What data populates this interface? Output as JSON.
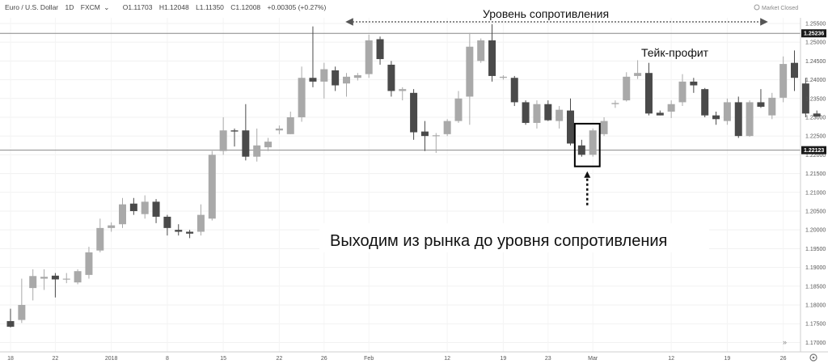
{
  "header": {
    "symbol": "Euro / U.S. Dollar",
    "timeframe": "1D",
    "source": "FXCM",
    "ohlc": {
      "open": "O1.11703",
      "high": "H1.12048",
      "low": "L1.11350",
      "close": "C1.12008"
    },
    "change": "+0.00305 (+0.27%)",
    "market_status": "Market Closed"
  },
  "chart_data": {
    "type": "candlestick",
    "y_axis": {
      "range": [
        1.1675,
        1.2565
      ],
      "ticks": [
        "1.25500",
        "1.25000",
        "1.24500",
        "1.24000",
        "1.23500",
        "1.23000",
        "1.22500",
        "1.22000",
        "1.21500",
        "1.21000",
        "1.20500",
        "1.20000",
        "1.19500",
        "1.19000",
        "1.18500",
        "1.18000",
        "1.17500",
        "1.17000"
      ]
    },
    "x_axis": {
      "ticks": [
        {
          "label": "18",
          "index": 0
        },
        {
          "label": "22",
          "index": 4
        },
        {
          "label": "2018",
          "index": 9
        },
        {
          "label": "8",
          "index": 14
        },
        {
          "label": "15",
          "index": 19
        },
        {
          "label": "22",
          "index": 24
        },
        {
          "label": "26",
          "index": 28
        },
        {
          "label": "Feb",
          "index": 32
        },
        {
          "label": "12",
          "index": 39
        },
        {
          "label": "19",
          "index": 44
        },
        {
          "label": "23",
          "index": 48
        },
        {
          "label": "Mar",
          "index": 52
        },
        {
          "label": "12",
          "index": 59
        },
        {
          "label": "19",
          "index": 64
        },
        {
          "label": "26",
          "index": 69
        }
      ]
    },
    "candles": [
      {
        "o": 1.1757,
        "h": 1.179,
        "l": 1.174,
        "c": 1.1742
      },
      {
        "o": 1.176,
        "h": 1.187,
        "l": 1.1752,
        "c": 1.18
      },
      {
        "o": 1.1845,
        "h": 1.1895,
        "l": 1.1812,
        "c": 1.1877
      },
      {
        "o": 1.187,
        "h": 1.1895,
        "l": 1.184,
        "c": 1.1875
      },
      {
        "o": 1.1878,
        "h": 1.1885,
        "l": 1.182,
        "c": 1.1868
      },
      {
        "o": 1.1868,
        "h": 1.1885,
        "l": 1.1858,
        "c": 1.187
      },
      {
        "o": 1.186,
        "h": 1.1895,
        "l": 1.1855,
        "c": 1.189
      },
      {
        "o": 1.188,
        "h": 1.1955,
        "l": 1.187,
        "c": 1.194
      },
      {
        "o": 1.1945,
        "h": 1.203,
        "l": 1.194,
        "c": 1.2005
      },
      {
        "o": 1.2005,
        "h": 1.202,
        "l": 1.1995,
        "c": 1.2012
      },
      {
        "o": 1.2015,
        "h": 1.2085,
        "l": 1.2005,
        "c": 1.2068
      },
      {
        "o": 1.207,
        "h": 1.2085,
        "l": 1.204,
        "c": 1.205
      },
      {
        "o": 1.2042,
        "h": 1.2092,
        "l": 1.203,
        "c": 1.2075
      },
      {
        "o": 1.2075,
        "h": 1.2082,
        "l": 1.2018,
        "c": 1.2035
      },
      {
        "o": 1.2035,
        "h": 1.204,
        "l": 1.1985,
        "c": 1.2005
      },
      {
        "o": 1.2,
        "h": 1.2015,
        "l": 1.1985,
        "c": 1.1995
      },
      {
        "o": 1.1995,
        "h": 1.2,
        "l": 1.1978,
        "c": 1.199
      },
      {
        "o": 1.1995,
        "h": 1.2068,
        "l": 1.1985,
        "c": 1.204
      },
      {
        "o": 1.203,
        "h": 1.221,
        "l": 1.2025,
        "c": 1.22
      },
      {
        "o": 1.221,
        "h": 1.23,
        "l": 1.22,
        "c": 1.2265
      },
      {
        "o": 1.2265,
        "h": 1.227,
        "l": 1.2222,
        "c": 1.2262
      },
      {
        "o": 1.2265,
        "h": 1.2335,
        "l": 1.2185,
        "c": 1.2195
      },
      {
        "o": 1.2195,
        "h": 1.227,
        "l": 1.2182,
        "c": 1.2225
      },
      {
        "o": 1.222,
        "h": 1.2245,
        "l": 1.221,
        "c": 1.2235
      },
      {
        "o": 1.2265,
        "h": 1.2278,
        "l": 1.2255,
        "c": 1.227
      },
      {
        "o": 1.2255,
        "h": 1.2315,
        "l": 1.2255,
        "c": 1.23
      },
      {
        "o": 1.23,
        "h": 1.2435,
        "l": 1.2288,
        "c": 1.2405
      },
      {
        "o": 1.2405,
        "h": 1.2542,
        "l": 1.238,
        "c": 1.2395
      },
      {
        "o": 1.2395,
        "h": 1.2445,
        "l": 1.235,
        "c": 1.2428
      },
      {
        "o": 1.2425,
        "h": 1.2435,
        "l": 1.237,
        "c": 1.2385
      },
      {
        "o": 1.239,
        "h": 1.2418,
        "l": 1.2355,
        "c": 1.2408
      },
      {
        "o": 1.2405,
        "h": 1.2418,
        "l": 1.2398,
        "c": 1.2412
      },
      {
        "o": 1.2415,
        "h": 1.252,
        "l": 1.2405,
        "c": 1.2505
      },
      {
        "o": 1.2508,
        "h": 1.2515,
        "l": 1.244,
        "c": 1.2455
      },
      {
        "o": 1.244,
        "h": 1.245,
        "l": 1.2355,
        "c": 1.237
      },
      {
        "o": 1.237,
        "h": 1.238,
        "l": 1.2345,
        "c": 1.2375
      },
      {
        "o": 1.2365,
        "h": 1.2375,
        "l": 1.224,
        "c": 1.226
      },
      {
        "o": 1.2262,
        "h": 1.229,
        "l": 1.221,
        "c": 1.225
      },
      {
        "o": 1.225,
        "h": 1.2258,
        "l": 1.2205,
        "c": 1.2252
      },
      {
        "o": 1.2255,
        "h": 1.2295,
        "l": 1.225,
        "c": 1.229
      },
      {
        "o": 1.229,
        "h": 1.237,
        "l": 1.2285,
        "c": 1.235
      },
      {
        "o": 1.2355,
        "h": 1.2525,
        "l": 1.228,
        "c": 1.2488
      },
      {
        "o": 1.245,
        "h": 1.251,
        "l": 1.2445,
        "c": 1.2505
      },
      {
        "o": 1.2505,
        "h": 1.2548,
        "l": 1.2395,
        "c": 1.241
      },
      {
        "o": 1.2405,
        "h": 1.2412,
        "l": 1.24,
        "c": 1.2408
      },
      {
        "o": 1.2405,
        "h": 1.241,
        "l": 1.233,
        "c": 1.234
      },
      {
        "o": 1.234,
        "h": 1.2345,
        "l": 1.228,
        "c": 1.2285
      },
      {
        "o": 1.2285,
        "h": 1.2345,
        "l": 1.227,
        "c": 1.2335
      },
      {
        "o": 1.2335,
        "h": 1.2345,
        "l": 1.229,
        "c": 1.2292
      },
      {
        "o": 1.229,
        "h": 1.233,
        "l": 1.227,
        "c": 1.232
      },
      {
        "o": 1.2318,
        "h": 1.235,
        "l": 1.2225,
        "c": 1.223
      },
      {
        "o": 1.2225,
        "h": 1.224,
        "l": 1.2195,
        "c": 1.22
      },
      {
        "o": 1.22,
        "h": 1.227,
        "l": 1.2195,
        "c": 1.2265
      },
      {
        "o": 1.2255,
        "h": 1.23,
        "l": 1.225,
        "c": 1.229
      },
      {
        "o": 1.2335,
        "h": 1.2345,
        "l": 1.2325,
        "c": 1.2338
      },
      {
        "o": 1.2345,
        "h": 1.242,
        "l": 1.2342,
        "c": 1.2408
      },
      {
        "o": 1.241,
        "h": 1.2452,
        "l": 1.2402,
        "c": 1.2418
      },
      {
        "o": 1.2418,
        "h": 1.2445,
        "l": 1.2305,
        "c": 1.231
      },
      {
        "o": 1.2312,
        "h": 1.2318,
        "l": 1.2305,
        "c": 1.2305
      },
      {
        "o": 1.2315,
        "h": 1.2345,
        "l": 1.2298,
        "c": 1.2335
      },
      {
        "o": 1.234,
        "h": 1.2415,
        "l": 1.233,
        "c": 1.2395
      },
      {
        "o": 1.2395,
        "h": 1.2405,
        "l": 1.2365,
        "c": 1.2385
      },
      {
        "o": 1.2375,
        "h": 1.2378,
        "l": 1.23,
        "c": 1.2305
      },
      {
        "o": 1.2305,
        "h": 1.2315,
        "l": 1.228,
        "c": 1.2295
      },
      {
        "o": 1.229,
        "h": 1.235,
        "l": 1.228,
        "c": 1.234
      },
      {
        "o": 1.234,
        "h": 1.2355,
        "l": 1.2245,
        "c": 1.225
      },
      {
        "o": 1.225,
        "h": 1.2345,
        "l": 1.2248,
        "c": 1.234
      },
      {
        "o": 1.234,
        "h": 1.2375,
        "l": 1.2325,
        "c": 1.2328
      },
      {
        "o": 1.2305,
        "h": 1.2365,
        "l": 1.2295,
        "c": 1.2352
      },
      {
        "o": 1.2352,
        "h": 1.2462,
        "l": 1.234,
        "c": 1.2442
      },
      {
        "o": 1.2445,
        "h": 1.2478,
        "l": 1.237,
        "c": 1.2405
      },
      {
        "o": 1.239,
        "h": 1.2405,
        "l": 1.23,
        "c": 1.231
      },
      {
        "o": 1.231,
        "h": 1.2318,
        "l": 1.23,
        "c": 1.2302
      }
    ],
    "levels": [
      {
        "value": 1.25236,
        "label": "1.25236"
      },
      {
        "value": 1.22123,
        "label": "1.22123"
      }
    ],
    "annotations": {
      "resistance": "Уровень сопротивления",
      "take_profit": "Тейк-профит",
      "exit": "Выходим из рынка до уровня сопротивления"
    },
    "highlight_candles": [
      51,
      52
    ],
    "colors": {
      "up": "#a9a9a9",
      "down": "#4a4a4a",
      "level": "#888888",
      "label_bg": "#1a1a1a"
    }
  }
}
